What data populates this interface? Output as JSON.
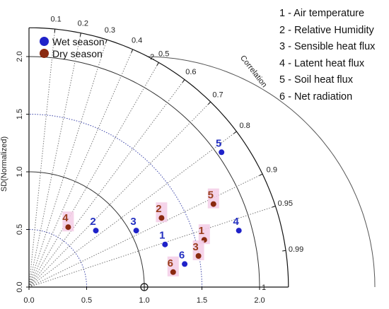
{
  "chart_data": {
    "type": "scatter",
    "subtype": "taylor-diagram",
    "ylabel": "SD(Normalized)",
    "arc_label": "Correlation",
    "sd_ticks": [
      "0.0",
      "0.5",
      "1.0",
      "1.5",
      "2.0"
    ],
    "sd_ticks_left": [
      "0.0",
      "0.5",
      "1.0",
      "1.5",
      "2.0"
    ],
    "sd_max": 2.25,
    "correlation_ticks": [
      {
        "value": 0.1,
        "label": "0.1"
      },
      {
        "value": 0.2,
        "label": "0.2"
      },
      {
        "value": 0.3,
        "label": "0.3"
      },
      {
        "value": 0.4,
        "label": "0.4"
      },
      {
        "value": 0.5,
        "label": "0.5"
      },
      {
        "value": 0.6,
        "label": "0.6"
      },
      {
        "value": 0.7,
        "label": "0.7"
      },
      {
        "value": 0.8,
        "label": "0.8"
      },
      {
        "value": 0.9,
        "label": "0.9"
      },
      {
        "value": 0.95,
        "label": "0.95"
      },
      {
        "value": 0.99,
        "label": "0.99"
      }
    ],
    "rmsd_arcs": [
      {
        "value": 1,
        "label": "1"
      },
      {
        "value": 2,
        "label": "2"
      }
    ],
    "reference_point": {
      "x": 1.0,
      "y": 0.0
    },
    "series": [
      {
        "name": "Wet season",
        "color": "#1f22c9",
        "label_color": "#2430c0",
        "points": [
          {
            "label": "1",
            "x": 1.18,
            "y": 0.37
          },
          {
            "label": "2",
            "x": 0.58,
            "y": 0.49
          },
          {
            "label": "3",
            "x": 0.93,
            "y": 0.49
          },
          {
            "label": "4",
            "x": 1.82,
            "y": 0.49
          },
          {
            "label": "5",
            "x": 1.67,
            "y": 1.17
          },
          {
            "label": "6",
            "x": 1.35,
            "y": 0.2
          }
        ]
      },
      {
        "name": "Dry season",
        "color": "#8a2a10",
        "label_color": "#9a3d1c",
        "points": [
          {
            "label": "1",
            "x": 1.52,
            "y": 0.41
          },
          {
            "label": "2",
            "x": 1.15,
            "y": 0.6
          },
          {
            "label": "3",
            "x": 1.47,
            "y": 0.27
          },
          {
            "label": "4",
            "x": 0.34,
            "y": 0.52
          },
          {
            "label": "5",
            "x": 1.6,
            "y": 0.72
          },
          {
            "label": "6",
            "x": 1.25,
            "y": 0.13
          }
        ]
      }
    ],
    "variables_legend": [
      "1 - Air temperature",
      "2 - Relative Humidity",
      "3 - Sensible heat flux",
      "4 - Latent heat flux",
      "5 - Soil heat flux",
      "6 - Net radiation"
    ],
    "colors": {
      "arc": "#555555",
      "correlation_line": "#777777",
      "sd_arc_dotted": "#3a43a8",
      "highlight": "#f3cde6"
    }
  }
}
